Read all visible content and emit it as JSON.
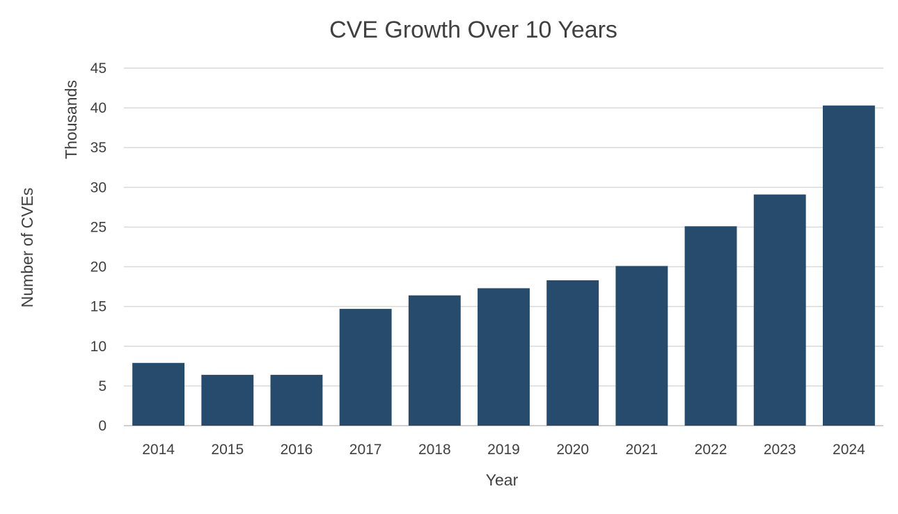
{
  "chart_data": {
    "type": "bar",
    "title": "CVE Growth Over 10 Years",
    "xlabel": "Year",
    "ylabel": "Number of CVEs",
    "y_units_label": "Thousands",
    "categories": [
      "2014",
      "2015",
      "2016",
      "2017",
      "2018",
      "2019",
      "2020",
      "2021",
      "2022",
      "2023",
      "2024"
    ],
    "series": [
      {
        "name": "CVEs (thousands)",
        "values": [
          7.9,
          6.4,
          6.4,
          14.7,
          16.4,
          17.3,
          18.3,
          20.1,
          25.1,
          29.1,
          40.3
        ]
      }
    ],
    "ylim": [
      0,
      45
    ],
    "yticks": [
      "0",
      "5",
      "10",
      "15",
      "20",
      "25",
      "30",
      "35",
      "40",
      "45"
    ],
    "grid": true,
    "legend": "none",
    "bar_color": "#264b6d"
  }
}
